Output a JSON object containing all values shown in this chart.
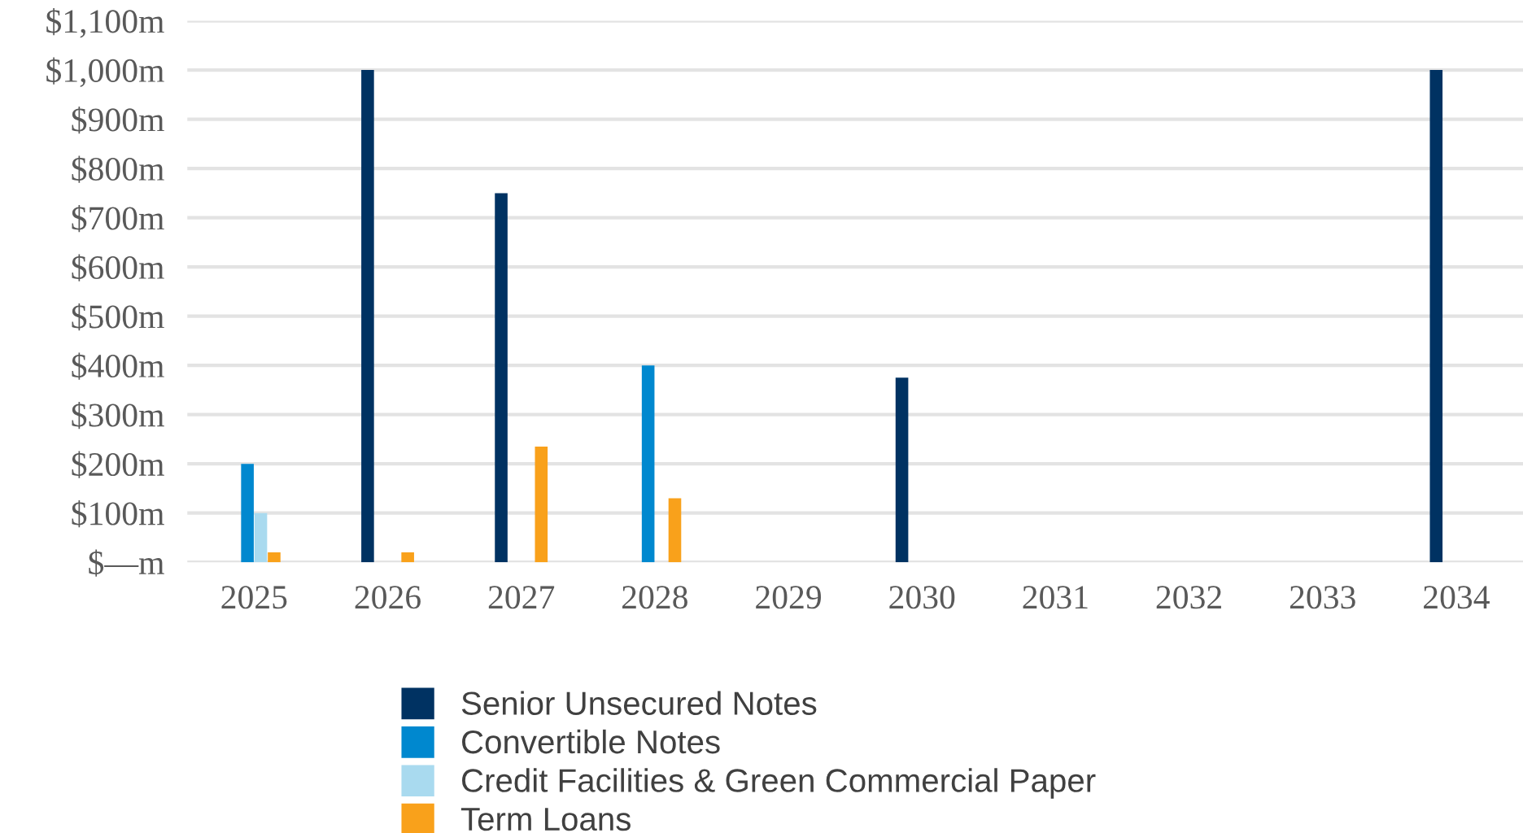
{
  "chart_data": {
    "type": "bar",
    "categories": [
      "2025",
      "2026",
      "2027",
      "2028",
      "2029",
      "2030",
      "2031",
      "2032",
      "2033",
      "2034"
    ],
    "series": [
      {
        "name": "Senior Unsecured Notes",
        "color": "#003262",
        "values": [
          null,
          1000,
          750,
          null,
          null,
          375,
          null,
          null,
          null,
          1000
        ]
      },
      {
        "name": "Convertible Notes",
        "color": "#0088cf",
        "values": [
          200,
          null,
          null,
          400,
          null,
          null,
          null,
          null,
          null,
          null
        ]
      },
      {
        "name": "Credit Facilities & Green Commercial Paper",
        "color": "#a9daef",
        "values": [
          100,
          null,
          null,
          null,
          null,
          null,
          null,
          null,
          null,
          null
        ]
      },
      {
        "name": "Term Loans",
        "color": "#f9a11b",
        "values": [
          20,
          20,
          235,
          130,
          null,
          null,
          null,
          null,
          null,
          null
        ]
      }
    ],
    "ylim": [
      0,
      1100
    ],
    "yticks": [
      {
        "value": 0,
        "label": "$—m"
      },
      {
        "value": 100,
        "label": "$100m"
      },
      {
        "value": 200,
        "label": "$200m"
      },
      {
        "value": 300,
        "label": "$300m"
      },
      {
        "value": 400,
        "label": "$400m"
      },
      {
        "value": 500,
        "label": "$500m"
      },
      {
        "value": 600,
        "label": "$600m"
      },
      {
        "value": 700,
        "label": "$700m"
      },
      {
        "value": 800,
        "label": "$800m"
      },
      {
        "value": 900,
        "label": "$900m"
      },
      {
        "value": 1000,
        "label": "$1,000m"
      },
      {
        "value": 1100,
        "label": "$1,100m"
      }
    ],
    "grid": "y",
    "legend": "bottom"
  }
}
